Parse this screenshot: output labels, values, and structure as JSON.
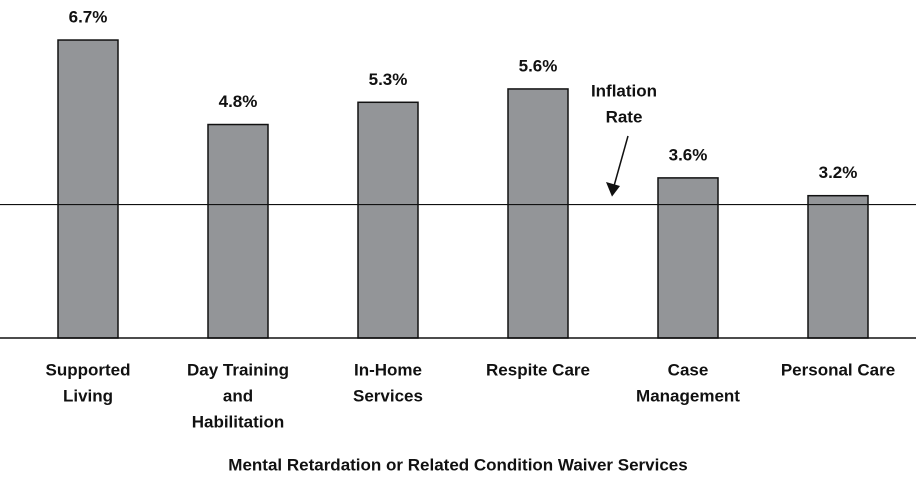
{
  "chart_data": {
    "type": "bar",
    "categories": [
      [
        "Supported",
        "Living"
      ],
      [
        "Day Training",
        "and",
        "Habilitation"
      ],
      [
        "In-Home",
        "Services"
      ],
      [
        "Respite Care"
      ],
      [
        "Case",
        "Management"
      ],
      [
        "Personal Care"
      ]
    ],
    "values": [
      6.7,
      4.8,
      5.3,
      5.6,
      3.6,
      3.2
    ],
    "value_labels": [
      "6.7%",
      "4.8%",
      "5.3%",
      "5.6%",
      "3.6%",
      "3.2%"
    ],
    "color": "#939598",
    "ylim": [
      0,
      7.6
    ],
    "reference_line": {
      "value": 3.0,
      "label": [
        "Inflation",
        "Rate"
      ]
    },
    "x_label": "Mental Retardation or Related Condition Waiver Services"
  }
}
